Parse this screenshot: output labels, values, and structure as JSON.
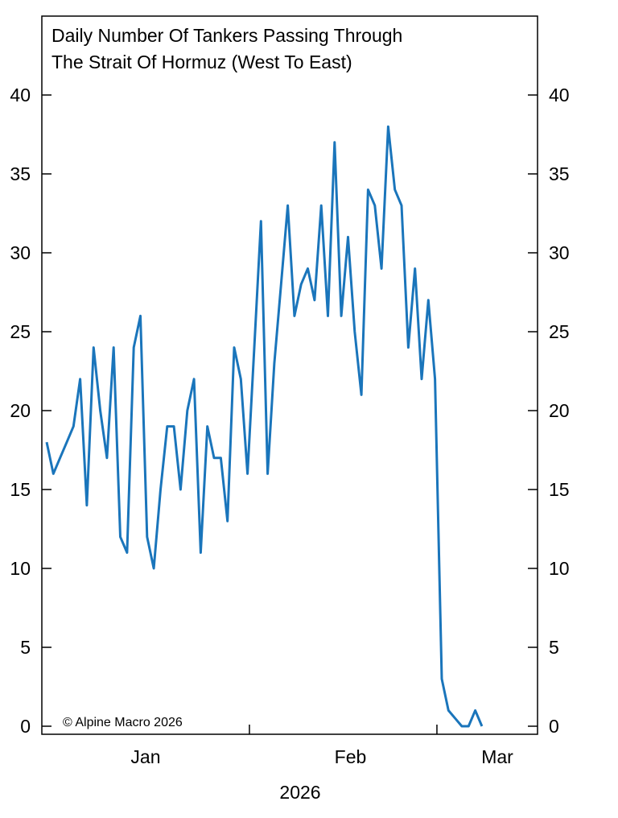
{
  "chart_data": {
    "type": "line",
    "title": "Daily Number Of Tankers Passing Through The Strait Of Hormuz (West To East)",
    "title_lines": [
      "Daily Number Of Tankers Passing Through",
      "The Strait Of Hormuz (West To East)"
    ],
    "xlabel": "2026",
    "ylabel": "",
    "ylim": [
      0,
      40
    ],
    "y_ticks": [
      0,
      5,
      10,
      15,
      20,
      25,
      30,
      35,
      40
    ],
    "x_tick_labels": [
      "Jan",
      "Feb",
      "Mar"
    ],
    "x_range": [
      "2026-01-01",
      "2026-03-31"
    ],
    "grid": false,
    "y_axis_both_sides": true,
    "line_color": "#1a75bb",
    "annotation": "© Alpine Macro 2026",
    "start_date": "2026-01-01",
    "frequency": "daily",
    "values": [
      18,
      16,
      17,
      18,
      19,
      22,
      14,
      24,
      20,
      17,
      24,
      12,
      11,
      24,
      26,
      12,
      10,
      15,
      19,
      19,
      15,
      20,
      22,
      11,
      19,
      17,
      17,
      13,
      24,
      22,
      16,
      24,
      32,
      16,
      23,
      28,
      33,
      26,
      28,
      29,
      27,
      33,
      26,
      37,
      26,
      31,
      25,
      21,
      34,
      33,
      29,
      38,
      34,
      33,
      24,
      29,
      22,
      27,
      22,
      3,
      1,
      0.5,
      0,
      0,
      1,
      0
    ]
  }
}
